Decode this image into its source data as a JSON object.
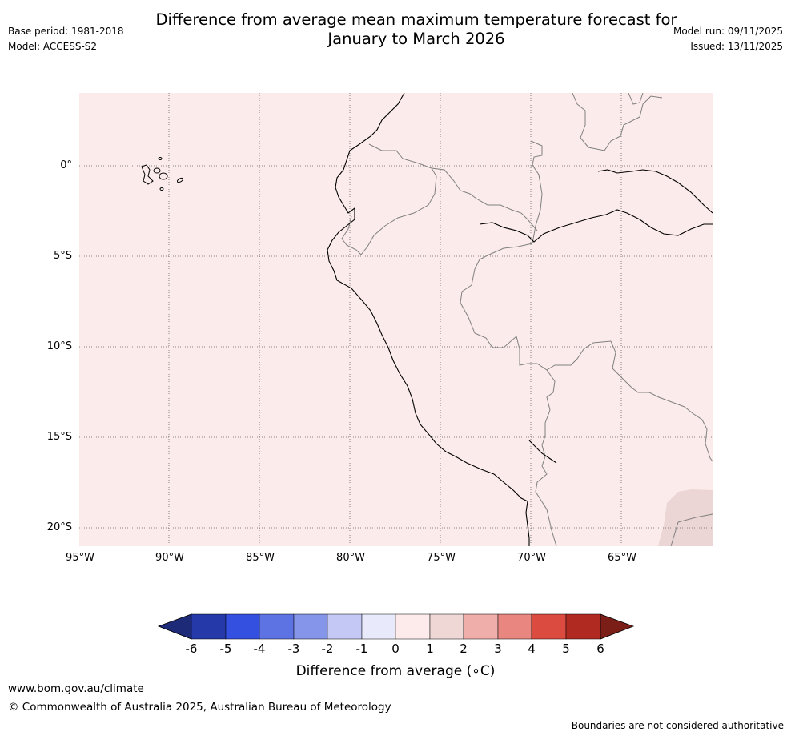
{
  "title_line1": "Difference from average mean maximum temperature forecast for",
  "title_line2": "January to March 2026",
  "meta": {
    "base_period": "Base period: 1981-2018",
    "model": "Model: ACCESS-S2",
    "model_run": "Model run: 09/11/2025",
    "issued": "Issued: 13/11/2025"
  },
  "map": {
    "lat_labels": [
      "0°",
      "5°S",
      "10°S",
      "15°S",
      "20°S"
    ],
    "lon_labels": [
      "95°W",
      "90°W",
      "85°W",
      "80°W",
      "75°W",
      "70°W",
      "65°W"
    ],
    "background_category": "0 to 1",
    "background_color": "#fbebea",
    "anomaly_patch_category": "1 to 2",
    "anomaly_patch_color": "#ecd6d5"
  },
  "colorbar": {
    "ticks": [
      "-6",
      "-5",
      "-4",
      "-3",
      "-2",
      "-1",
      "0",
      "1",
      "2",
      "3",
      "4",
      "5",
      "6"
    ],
    "colors": [
      "#2639a8",
      "#3450e0",
      "#5d72e3",
      "#8595ea",
      "#c3c9f4",
      "#e8eafb",
      "#fcebea",
      "#efd7d6",
      "#efaea9",
      "#e8867f",
      "#dc4b3f",
      "#b02a21"
    ],
    "under_color": "#1c2a78",
    "over_color": "#7b1e18",
    "label": "Difference from average (∘C)"
  },
  "footer": {
    "url": "www.bom.gov.au/climate",
    "copyright": "© Commonwealth of Australia 2025, Australian Bureau of Meteorology",
    "note": "Boundaries are not considered authoritative"
  }
}
